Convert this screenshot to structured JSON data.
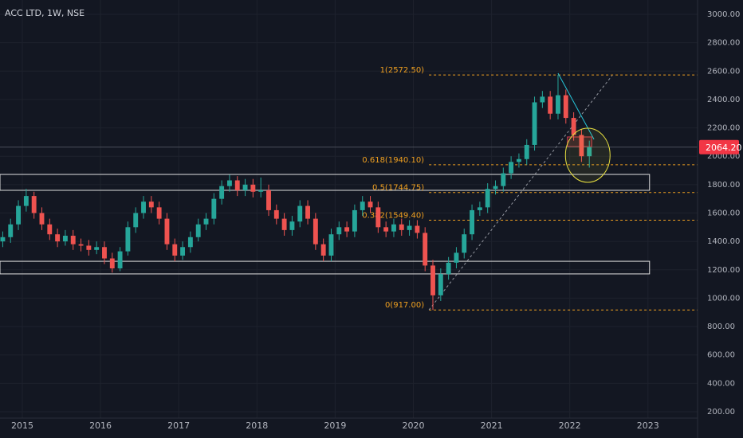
{
  "chart_data": {
    "type": "candlestick",
    "title": "ACC LTD, 1W, NSE",
    "colors": {
      "up": "#26a69a",
      "down": "#ef5350",
      "background": "#131722",
      "grid": "#1e222d",
      "fib": "#f0a020",
      "zone": "#e0e0e0",
      "red_zone": "#e04050",
      "trend": "#26c6da",
      "circle": "#e8e040"
    },
    "grid": true,
    "xlim": [
      2014.715,
      2023.634
    ],
    "xticks": [
      2015,
      2016,
      2017,
      2018,
      2019,
      2020,
      2021,
      2022,
      2023
    ],
    "ylim": [
      155,
      3101
    ],
    "yticks": [
      {
        "value": 200,
        "label": "200.00"
      },
      {
        "value": 400,
        "label": "400.00"
      },
      {
        "value": 600,
        "label": "600.00"
      },
      {
        "value": 800,
        "label": "800.00"
      },
      {
        "value": 1000,
        "label": "1000.00"
      },
      {
        "value": 1200,
        "label": "1200.00"
      },
      {
        "value": 1400,
        "label": "1400.00"
      },
      {
        "value": 1600,
        "label": "1600.00"
      },
      {
        "value": 1800,
        "label": "1800.00"
      },
      {
        "value": 2000,
        "label": "2000.00"
      },
      {
        "value": 2200,
        "label": "2200.00"
      },
      {
        "value": 2400,
        "label": "2400.00"
      },
      {
        "value": 2600,
        "label": "2600.00"
      },
      {
        "value": 2800,
        "label": "2800.00"
      },
      {
        "value": 3000,
        "label": "3000.00"
      }
    ],
    "candles": {
      "x": [
        2014.75,
        2014.85,
        2014.95,
        2015.05,
        2015.15,
        2015.25,
        2015.35,
        2015.45,
        2015.55,
        2015.65,
        2015.75,
        2015.85,
        2015.95,
        2016.05,
        2016.15,
        2016.25,
        2016.35,
        2016.45,
        2016.55,
        2016.65,
        2016.75,
        2016.85,
        2016.95,
        2017.05,
        2017.15,
        2017.25,
        2017.35,
        2017.45,
        2017.55,
        2017.65,
        2017.75,
        2017.85,
        2017.95,
        2018.05,
        2018.15,
        2018.25,
        2018.35,
        2018.45,
        2018.55,
        2018.65,
        2018.75,
        2018.85,
        2018.95,
        2019.05,
        2019.15,
        2019.25,
        2019.35,
        2019.45,
        2019.55,
        2019.65,
        2019.75,
        2019.85,
        2019.95,
        2020.05,
        2020.15,
        2020.25,
        2020.35,
        2020.45,
        2020.55,
        2020.65,
        2020.75,
        2020.85,
        2020.95,
        2021.05,
        2021.15,
        2021.25,
        2021.35,
        2021.45,
        2021.55,
        2021.65,
        2021.75,
        2021.85,
        2021.95,
        2022.05,
        2022.15,
        2022.25
      ],
      "open": [
        1400,
        1430,
        1520,
        1650,
        1720,
        1600,
        1520,
        1450,
        1400,
        1440,
        1380,
        1370,
        1340,
        1360,
        1280,
        1210,
        1330,
        1500,
        1600,
        1680,
        1640,
        1560,
        1380,
        1300,
        1360,
        1430,
        1520,
        1560,
        1700,
        1790,
        1830,
        1760,
        1800,
        1750,
        1760,
        1620,
        1560,
        1480,
        1540,
        1650,
        1560,
        1380,
        1300,
        1450,
        1500,
        1470,
        1620,
        1680,
        1640,
        1500,
        1470,
        1520,
        1480,
        1510,
        1460,
        1230,
        1020,
        1170,
        1250,
        1320,
        1450,
        1620,
        1640,
        1770,
        1790,
        1880,
        1960,
        1980,
        2080,
        2380,
        2420,
        2300,
        2430,
        2270,
        2150,
        2000
      ],
      "high": [
        1470,
        1560,
        1690,
        1770,
        1750,
        1640,
        1560,
        1490,
        1480,
        1480,
        1420,
        1410,
        1400,
        1400,
        1320,
        1360,
        1540,
        1640,
        1720,
        1720,
        1680,
        1600,
        1420,
        1400,
        1470,
        1560,
        1600,
        1740,
        1830,
        1870,
        1860,
        1840,
        1840,
        1850,
        1800,
        1660,
        1600,
        1580,
        1690,
        1690,
        1600,
        1420,
        1490,
        1540,
        1540,
        1660,
        1720,
        1720,
        1680,
        1540,
        1560,
        1560,
        1550,
        1550,
        1500,
        1270,
        1210,
        1290,
        1360,
        1490,
        1660,
        1680,
        1810,
        1830,
        1920,
        2000,
        2020,
        2120,
        2420,
        2460,
        2460,
        2572.5,
        2470,
        2310,
        2190,
        2110
      ],
      "low": [
        1360,
        1390,
        1480,
        1610,
        1560,
        1480,
        1410,
        1360,
        1370,
        1340,
        1330,
        1300,
        1310,
        1240,
        1180,
        1190,
        1300,
        1460,
        1560,
        1600,
        1520,
        1340,
        1260,
        1270,
        1320,
        1400,
        1480,
        1520,
        1660,
        1750,
        1720,
        1720,
        1710,
        1710,
        1580,
        1520,
        1440,
        1440,
        1500,
        1520,
        1340,
        1260,
        1260,
        1410,
        1430,
        1430,
        1580,
        1600,
        1460,
        1430,
        1430,
        1440,
        1440,
        1420,
        1190,
        917,
        980,
        1130,
        1210,
        1280,
        1410,
        1580,
        1600,
        1730,
        1750,
        1840,
        1920,
        1940,
        2040,
        2340,
        2260,
        2260,
        2230,
        2110,
        1960,
        1920
      ],
      "close": [
        1430,
        1520,
        1650,
        1720,
        1600,
        1520,
        1450,
        1400,
        1440,
        1380,
        1370,
        1340,
        1360,
        1280,
        1210,
        1330,
        1500,
        1600,
        1680,
        1640,
        1560,
        1380,
        1300,
        1360,
        1430,
        1520,
        1560,
        1700,
        1790,
        1830,
        1760,
        1800,
        1750,
        1760,
        1620,
        1560,
        1480,
        1540,
        1650,
        1560,
        1380,
        1300,
        1450,
        1500,
        1470,
        1620,
        1680,
        1640,
        1500,
        1470,
        1520,
        1480,
        1510,
        1460,
        1230,
        1020,
        1170,
        1250,
        1320,
        1450,
        1620,
        1640,
        1770,
        1790,
        1880,
        1960,
        1980,
        2080,
        2380,
        2420,
        2300,
        2430,
        2270,
        2150,
        2000,
        2064.2
      ]
    },
    "last_price": {
      "value": 2064.2,
      "label": "2064.20"
    },
    "fib": {
      "from": 2020.2,
      "levels": [
        {
          "value": 2572.5,
          "label": "1(2572.50)"
        },
        {
          "value": 1940.1,
          "label": "0.618(1940.10)"
        },
        {
          "value": 1744.75,
          "label": "0.5(1744.75)"
        },
        {
          "value": 1549.4,
          "label": "0.382(1549.40)"
        },
        {
          "value": 917,
          "label": "0(917.00)"
        }
      ]
    },
    "zones": [
      {
        "x": [
          2014.715,
          2023.02
        ],
        "y": [
          1760,
          1872
        ]
      },
      {
        "x": [
          2014.715,
          2023.02
        ],
        "y": [
          1171,
          1260
        ]
      }
    ],
    "red_zone": {
      "x": [
        2021.97,
        2022.28
      ],
      "y": [
        2068,
        2136
      ]
    },
    "trend_up": {
      "x": [
        2020.2,
        2022.54
      ],
      "y": [
        917,
        2568
      ]
    },
    "trend_down": {
      "x": [
        2021.85,
        2022.31
      ],
      "y": [
        2585,
        2119
      ]
    },
    "circle": {
      "x": 2022.23,
      "y": 2007
    }
  }
}
